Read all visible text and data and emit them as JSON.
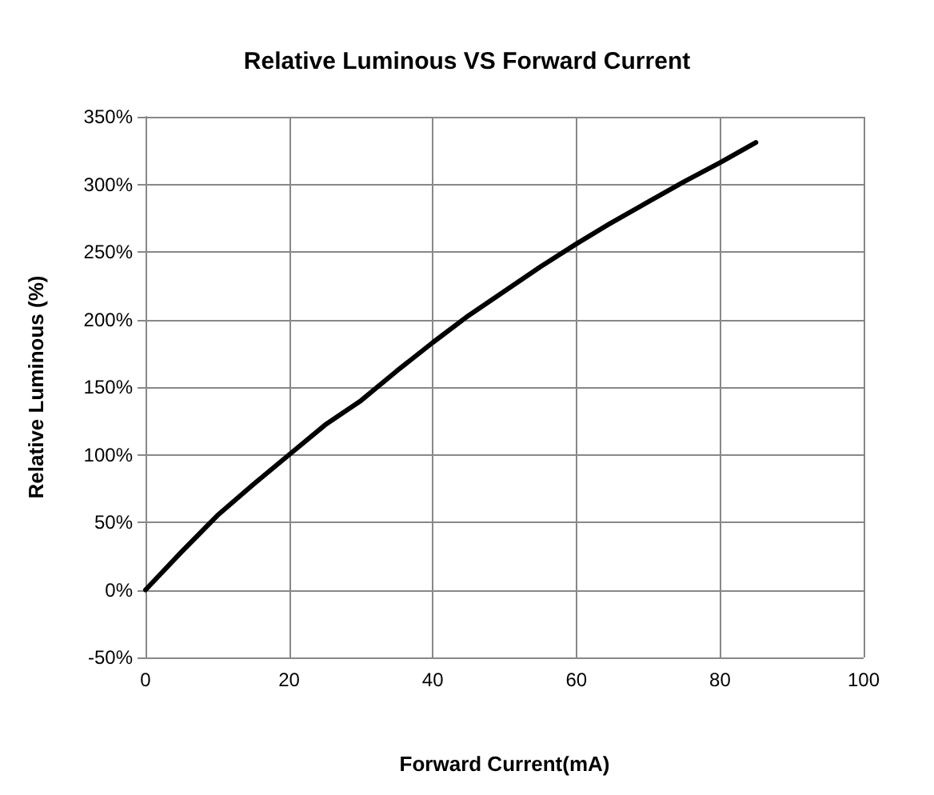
{
  "chart_data": {
    "type": "line",
    "title": "Relative Luminous VS Forward Current",
    "xlabel": "Forward Current(mA)",
    "ylabel": "Relative Luminous (%)",
    "x": [
      0,
      5,
      10,
      15,
      20,
      25,
      30,
      35,
      40,
      45,
      50,
      55,
      60,
      65,
      70,
      75,
      80,
      85
    ],
    "series": [
      {
        "color": "#000000",
        "values": [
          0,
          28,
          55,
          78,
          100,
          122,
          140,
          162,
          183,
          203,
          221,
          239,
          256,
          272,
          287,
          302,
          316,
          331
        ]
      }
    ],
    "xlim": [
      0,
      100
    ],
    "xticks": [
      0,
      20,
      40,
      60,
      80,
      100
    ],
    "ylim": [
      -50,
      350
    ],
    "yticks": [
      {
        "value": -50,
        "label": "-50%"
      },
      {
        "value": 0,
        "label": "0%"
      },
      {
        "value": 50,
        "label": "50%"
      },
      {
        "value": 100,
        "label": "100%"
      },
      {
        "value": 150,
        "label": "150%"
      },
      {
        "value": 200,
        "label": "200%"
      },
      {
        "value": 250,
        "label": "250%"
      },
      {
        "value": 300,
        "label": "300%"
      },
      {
        "value": 350,
        "label": "350%"
      }
    ],
    "grid": true,
    "marker": "none",
    "line_style": "solid"
  }
}
